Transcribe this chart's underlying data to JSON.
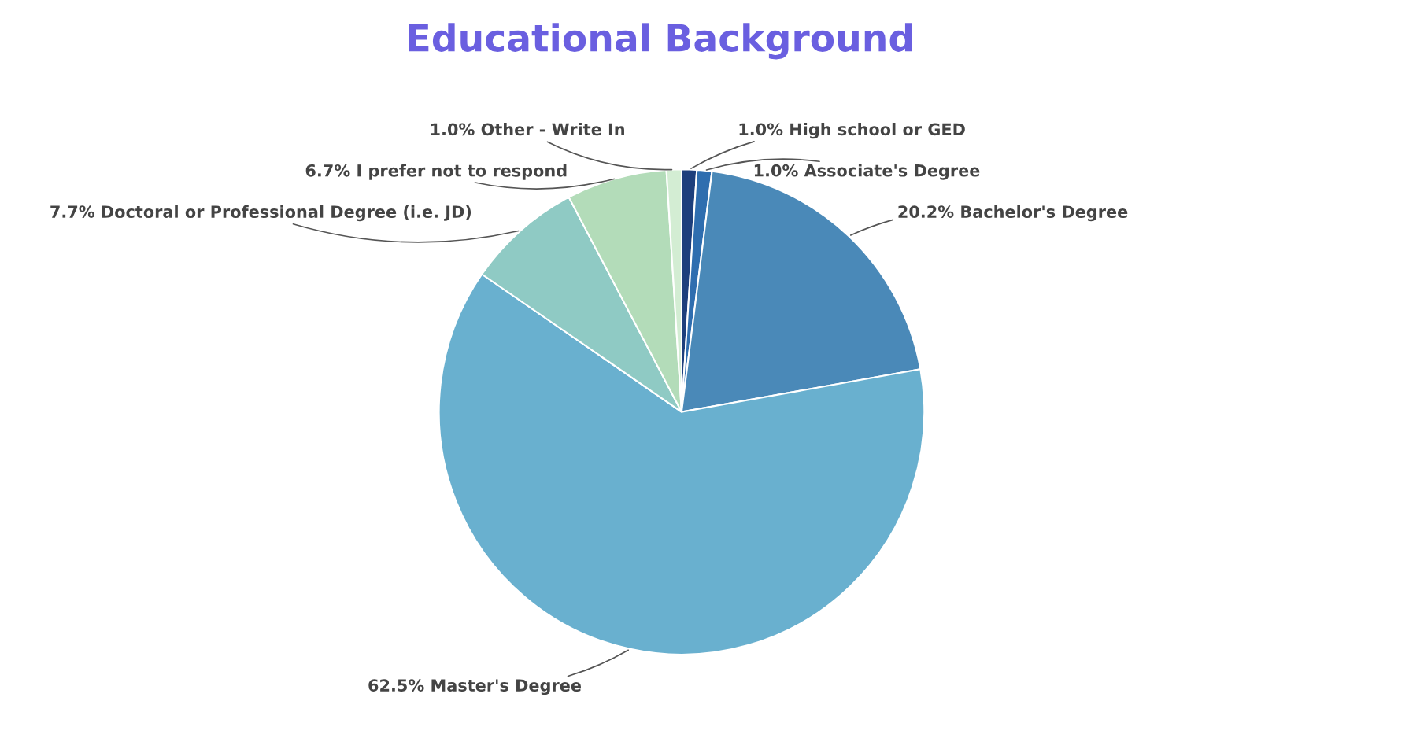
{
  "chart_data": {
    "type": "pie",
    "title": "Educational Background",
    "categories": [
      "High school or GED",
      "Associate's Degree",
      "Bachelor's Degree",
      "Master's Degree",
      "Doctoral or Professional Degree (i.e. JD)",
      "I prefer not to respond",
      "Other - Write In"
    ],
    "values": [
      1.0,
      1.0,
      20.2,
      62.5,
      7.7,
      6.7,
      1.0
    ],
    "value_labels": [
      "1.0%",
      "1.0%",
      "20.2%",
      "62.5%",
      "7.7%",
      "6.7%",
      "1.0%"
    ],
    "colors": [
      "#1d3f7c",
      "#2f6eaf",
      "#4a89b8",
      "#69b0cf",
      "#8fcac4",
      "#b3dcb9",
      "#d3edd3"
    ]
  }
}
